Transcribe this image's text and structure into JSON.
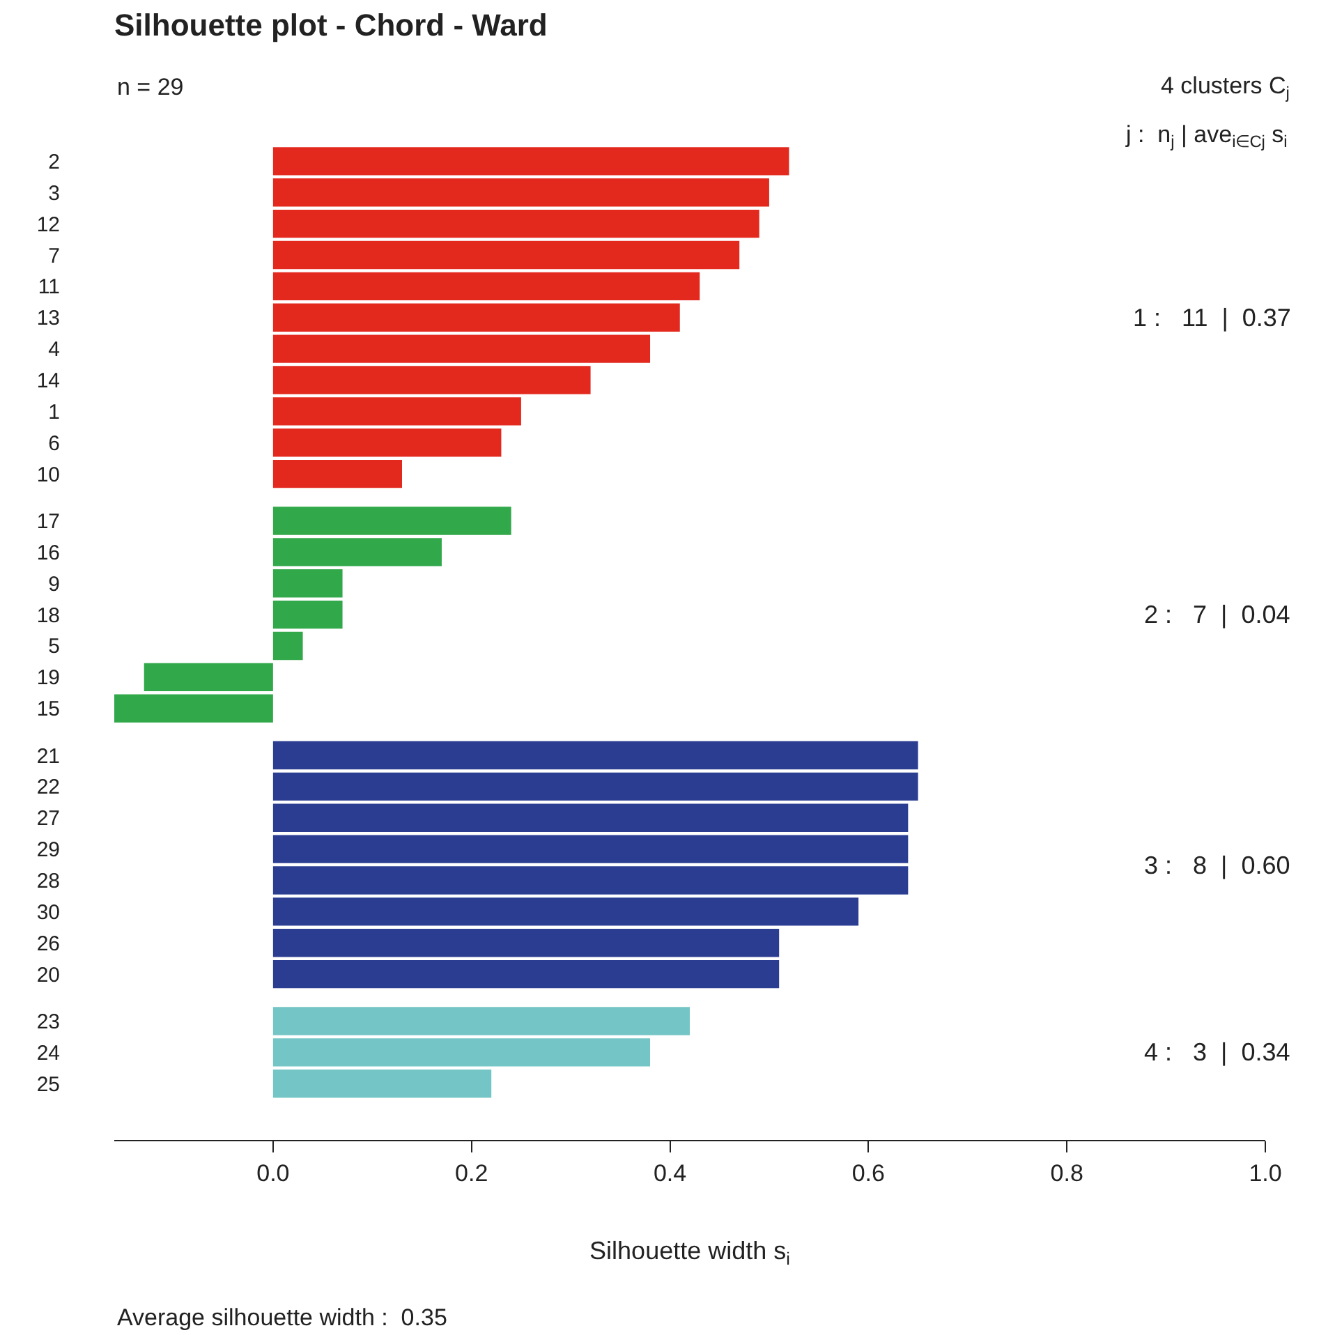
{
  "chart_data": {
    "type": "bar",
    "orientation": "horizontal",
    "title": "Silhouette plot - Chord - Ward",
    "xlabel": "Silhouette width s$_{i}$",
    "categories": [
      "2",
      "3",
      "12",
      "7",
      "11",
      "13",
      "4",
      "14",
      "1",
      "6",
      "10",
      "17",
      "16",
      "9",
      "18",
      "5",
      "19",
      "15",
      "21",
      "22",
      "27",
      "29",
      "28",
      "30",
      "26",
      "20",
      "23",
      "24",
      "25"
    ],
    "series": [
      {
        "color": "#e3281e",
        "values": [
          0.52,
          0.5,
          0.49,
          0.47,
          0.43,
          0.41,
          0.38,
          0.32,
          0.25,
          0.23,
          0.13,
          null,
          null,
          null,
          null,
          null,
          null,
          null,
          null,
          null,
          null,
          null,
          null,
          null,
          null,
          null,
          null,
          null,
          null
        ]
      },
      {
        "color": "#31a84a",
        "values": [
          null,
          null,
          null,
          null,
          null,
          null,
          null,
          null,
          null,
          null,
          null,
          0.24,
          0.17,
          0.07,
          0.07,
          0.03,
          -0.13,
          -0.16,
          null,
          null,
          null,
          null,
          null,
          null,
          null,
          null,
          null,
          null,
          null
        ]
      },
      {
        "color": "#2b3d91",
        "values": [
          null,
          null,
          null,
          null,
          null,
          null,
          null,
          null,
          null,
          null,
          null,
          null,
          null,
          null,
          null,
          null,
          null,
          null,
          0.65,
          0.65,
          0.64,
          0.64,
          0.64,
          0.59,
          0.51,
          0.51,
          null,
          null,
          null
        ]
      },
      {
        "color": "#74c5c5",
        "values": [
          null,
          null,
          null,
          null,
          null,
          null,
          null,
          null,
          null,
          null,
          null,
          null,
          null,
          null,
          null,
          null,
          null,
          null,
          null,
          null,
          null,
          null,
          null,
          null,
          null,
          null,
          0.42,
          0.38,
          0.22
        ]
      }
    ],
    "xlim": [
      -0.16,
      1.0
    ],
    "xticks": [
      {
        "value": 0,
        "label": "0.0"
      },
      0.2,
      0.4,
      0.6,
      0.8,
      {
        "value": 1,
        "label": "1.0"
      }
    ],
    "grid": false,
    "annotations": [
      "n = 29",
      "4 clusters C$_{j}$",
      "j :  n$_{j}$ | ave$_{i∈Cj}$ s$_{i}$",
      "1 :   11  |  0.37",
      "2 :   7  |  0.04",
      "3 :   8  |  0.60",
      "4 :   3  |  0.34",
      "Average silhouette width :  0.35"
    ]
  }
}
